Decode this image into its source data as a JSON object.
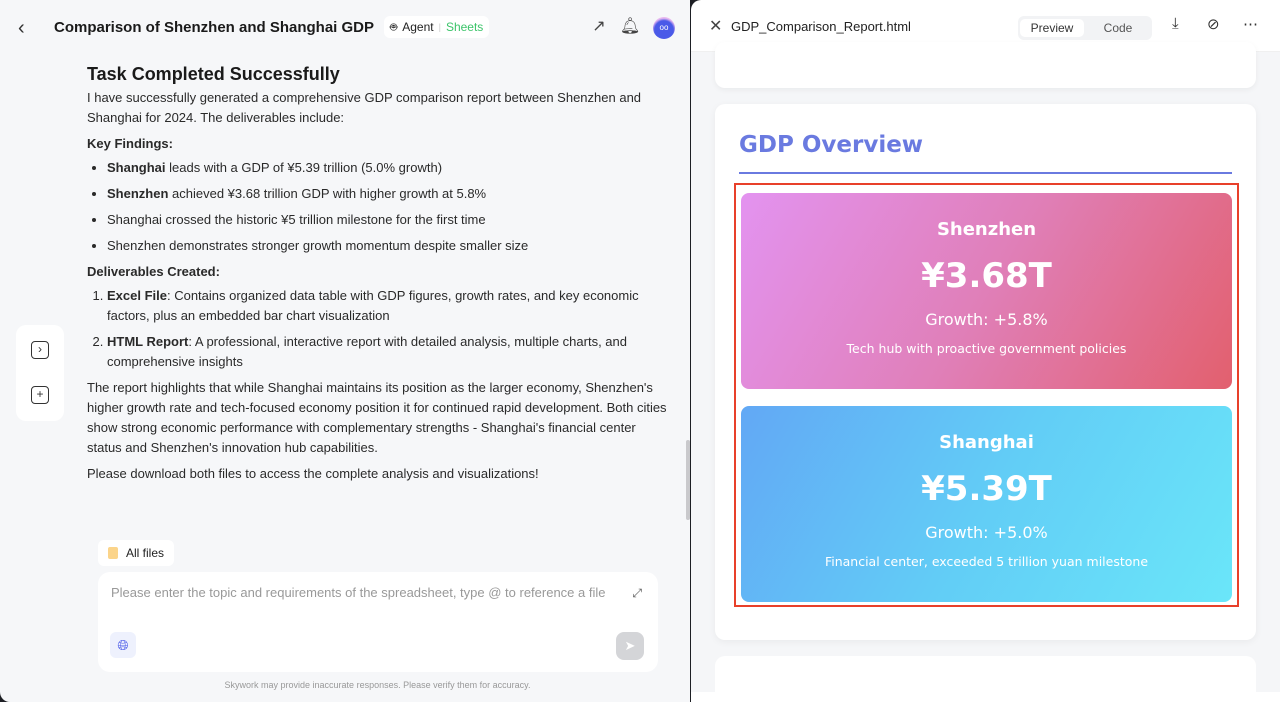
{
  "header": {
    "title": "Comparison of Shenzhen and Shanghai GDP",
    "mode": "Agent",
    "type": "Sheets"
  },
  "message": {
    "heading": "Task Completed Successfully",
    "intro": "I have successfully generated a comprehensive GDP comparison report between Shenzhen and Shanghai for 2024. The deliverables include:",
    "findings_title": "Key Findings:",
    "findings": [
      {
        "bold": "Shanghai",
        "text": " leads with a GDP of ¥5.39 trillion (5.0% growth)"
      },
      {
        "bold": "Shenzhen",
        "text": " achieved ¥3.68 trillion GDP with higher growth at 5.8%"
      },
      {
        "bold": "",
        "text": "Shanghai crossed the historic ¥5 trillion milestone for the first time"
      },
      {
        "bold": "",
        "text": "Shenzhen demonstrates stronger growth momentum despite smaller size"
      }
    ],
    "deliverables_title": "Deliverables Created:",
    "deliverables": [
      {
        "bold": "Excel File",
        "text": ": Contains organized data table with GDP figures, growth rates, and key economic factors, plus an embedded bar chart visualization"
      },
      {
        "bold": "HTML Report",
        "text": ": A professional, interactive report with detailed analysis, multiple charts, and comprehensive insights"
      }
    ],
    "summary": "The report highlights that while Shanghai maintains its position as the larger economy, Shenzhen's higher growth rate and tech-focused economy position it for continued rapid development. Both cities show strong economic performance with complementary strengths - Shanghai's financial center status and Shenzhen's innovation hub capabilities.",
    "closing": "Please download both files to access the complete analysis and visualizations!"
  },
  "all_files": "All files",
  "input": {
    "placeholder": "Please enter the topic and requirements of the spreadsheet, type @ to reference a file"
  },
  "disclaimer": "Skywork may provide inaccurate responses. Please verify them for accuracy.",
  "preview": {
    "filename": "GDP_Comparison_Report.html",
    "tabs": [
      "Preview",
      "Code"
    ],
    "active_tab": "Preview",
    "section_title": "GDP Overview",
    "cities": [
      {
        "name": "Shenzhen",
        "gdp": "¥3.68T",
        "growth": "Growth: +5.8%",
        "desc": "Tech hub with proactive government policies"
      },
      {
        "name": "Shanghai",
        "gdp": "¥5.39T",
        "growth": "Growth: +5.0%",
        "desc": "Financial center, exceeded 5 trillion yuan milestone"
      }
    ],
    "accent": "#6a7ae0",
    "highlight": "#e8402a"
  }
}
